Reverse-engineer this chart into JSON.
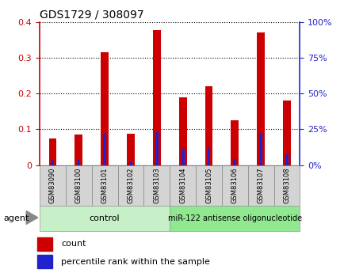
{
  "title": "GDS1729 / 308097",
  "categories": [
    "GSM83090",
    "GSM83100",
    "GSM83101",
    "GSM83102",
    "GSM83103",
    "GSM83104",
    "GSM83105",
    "GSM83106",
    "GSM83107",
    "GSM83108"
  ],
  "count_values": [
    0.075,
    0.085,
    0.315,
    0.088,
    0.378,
    0.19,
    0.22,
    0.126,
    0.37,
    0.18
  ],
  "percentile_values": [
    3.0,
    3.5,
    22.0,
    2.5,
    23.0,
    11.5,
    12.0,
    4.5,
    22.5,
    7.5
  ],
  "count_color": "#cc0000",
  "percentile_color": "#2222cc",
  "ylim_left": [
    0,
    0.4
  ],
  "ylim_right": [
    0,
    100
  ],
  "yticks_left": [
    0,
    0.1,
    0.2,
    0.3,
    0.4
  ],
  "yticks_right": [
    0,
    25,
    50,
    75,
    100
  ],
  "control_label": "control",
  "treatment_label": "miR-122 antisense oligonucleotide",
  "agent_label": "agent",
  "control_color": "#c8f0c8",
  "treatment_color": "#90e890",
  "tick_label_color_left": "#cc0000",
  "tick_label_color_right": "#2222cc",
  "bar_width": 0.12,
  "background_color": "#ffffff"
}
